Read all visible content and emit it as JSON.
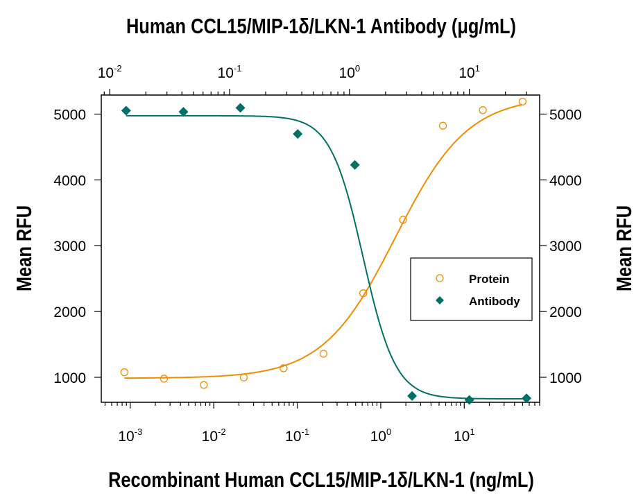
{
  "chart_data": {
    "type": "scatter",
    "title": "Human CCL15/MIP-1δ/LKN-1 Antibody (μg/mL)",
    "xlabel": "Recombinant Human CCL15/MIP-1δ/LKN-1 (ng/mL)",
    "ylabel": "Mean RFU",
    "ylabel_right": "Mean RFU",
    "x_scale": "log",
    "x_top_scale": "log",
    "xlim": [
      0.00045,
      80
    ],
    "x_top_lim": [
      0.0085,
      38.6
    ],
    "ylim": [
      620,
      5290
    ],
    "x_ticks": [
      "-3",
      "-2",
      "-1",
      "0",
      "1"
    ],
    "x_top_ticks": [
      "-2",
      "-1",
      "0",
      "1"
    ],
    "y_ticks": [
      1000,
      2000,
      3000,
      4000,
      5000
    ],
    "tick_base": "10",
    "grid": false,
    "legend_position": "center-right",
    "series": [
      {
        "name": "Protein",
        "axis": "bottom",
        "marker": "open-circle",
        "color": "#f08c00",
        "x": [
          0.00085,
          0.00254,
          0.00762,
          0.0229,
          0.0686,
          0.206,
          0.617,
          1.85,
          5.56,
          16.7,
          50
        ],
        "y": [
          1077,
          979,
          884,
          997,
          1137,
          1358,
          2277,
          3393,
          4824,
          5060,
          5190
        ],
        "fit": {
          "bottom": 985,
          "top": 5270,
          "ec50": 1.5,
          "hill": 1.0
        }
      },
      {
        "name": "Antibody",
        "axis": "top",
        "marker": "filled-diamond",
        "color": "#007066",
        "x": [
          0.0137,
          0.0412,
          0.123,
          0.37,
          1.11,
          3.33,
          10,
          30
        ],
        "y": [
          5053,
          5035,
          5095,
          4698,
          4228,
          716,
          656,
          681
        ],
        "fit": {
          "bottom": 672,
          "top": 4975,
          "ec50": 1.3,
          "hill": 3.2
        }
      }
    ]
  }
}
